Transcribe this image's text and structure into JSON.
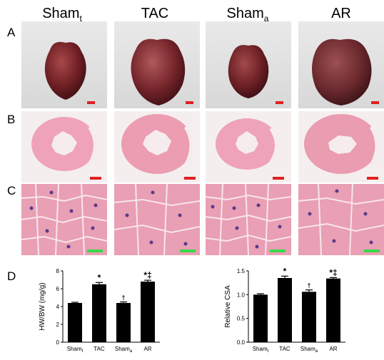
{
  "figure": {
    "columns": [
      {
        "main": "Sham",
        "sub": "t"
      },
      {
        "main": "TAC",
        "sub": ""
      },
      {
        "main": "Sham",
        "sub": "a"
      },
      {
        "main": "AR",
        "sub": ""
      }
    ],
    "row_labels": [
      "A",
      "B",
      "C",
      "D"
    ],
    "colors": {
      "scalebar_red": "#e02020",
      "scalebar_green": "#38d84a",
      "heart_tissue": "#6e1f24",
      "he_pink": "#ef9fb6",
      "nuclei": "#5a3a8a",
      "bar_fill": "#000000"
    }
  },
  "chart_data": [
    {
      "type": "bar",
      "categories": [
        "Sham_t",
        "TAC",
        "Sham_a",
        "AR"
      ],
      "tick_labels": [
        {
          "main": "Sham",
          "sub": "t"
        },
        {
          "main": "TAC",
          "sub": ""
        },
        {
          "main": "Sham",
          "sub": "a"
        },
        {
          "main": "AR",
          "sub": ""
        }
      ],
      "values": [
        4.4,
        6.5,
        4.4,
        6.8
      ],
      "errors": [
        0.08,
        0.2,
        0.12,
        0.15
      ],
      "annotations": [
        "",
        "*",
        "†",
        "*‡"
      ],
      "ylabel": "HW/BW (mg/g)",
      "ylim": [
        0,
        8
      ],
      "yticks": [
        "0",
        "2",
        "4",
        "6",
        "8"
      ],
      "grid": false
    },
    {
      "type": "bar",
      "categories": [
        "Sham_t",
        "TAC",
        "Sham_a",
        "AR"
      ],
      "tick_labels": [
        {
          "main": "Sham",
          "sub": "t"
        },
        {
          "main": "TAC",
          "sub": ""
        },
        {
          "main": "Sham",
          "sub": "a"
        },
        {
          "main": "AR",
          "sub": ""
        }
      ],
      "values": [
        1.0,
        1.35,
        1.06,
        1.34
      ],
      "errors": [
        0.02,
        0.04,
        0.04,
        0.02
      ],
      "annotations": [
        "",
        "*",
        "†",
        "*‡"
      ],
      "ylabel": "Relative CSA",
      "ylim": [
        0,
        1.5
      ],
      "yticks": [
        "0.0",
        "0.5",
        "1.0",
        "1.5"
      ],
      "grid": false
    }
  ]
}
